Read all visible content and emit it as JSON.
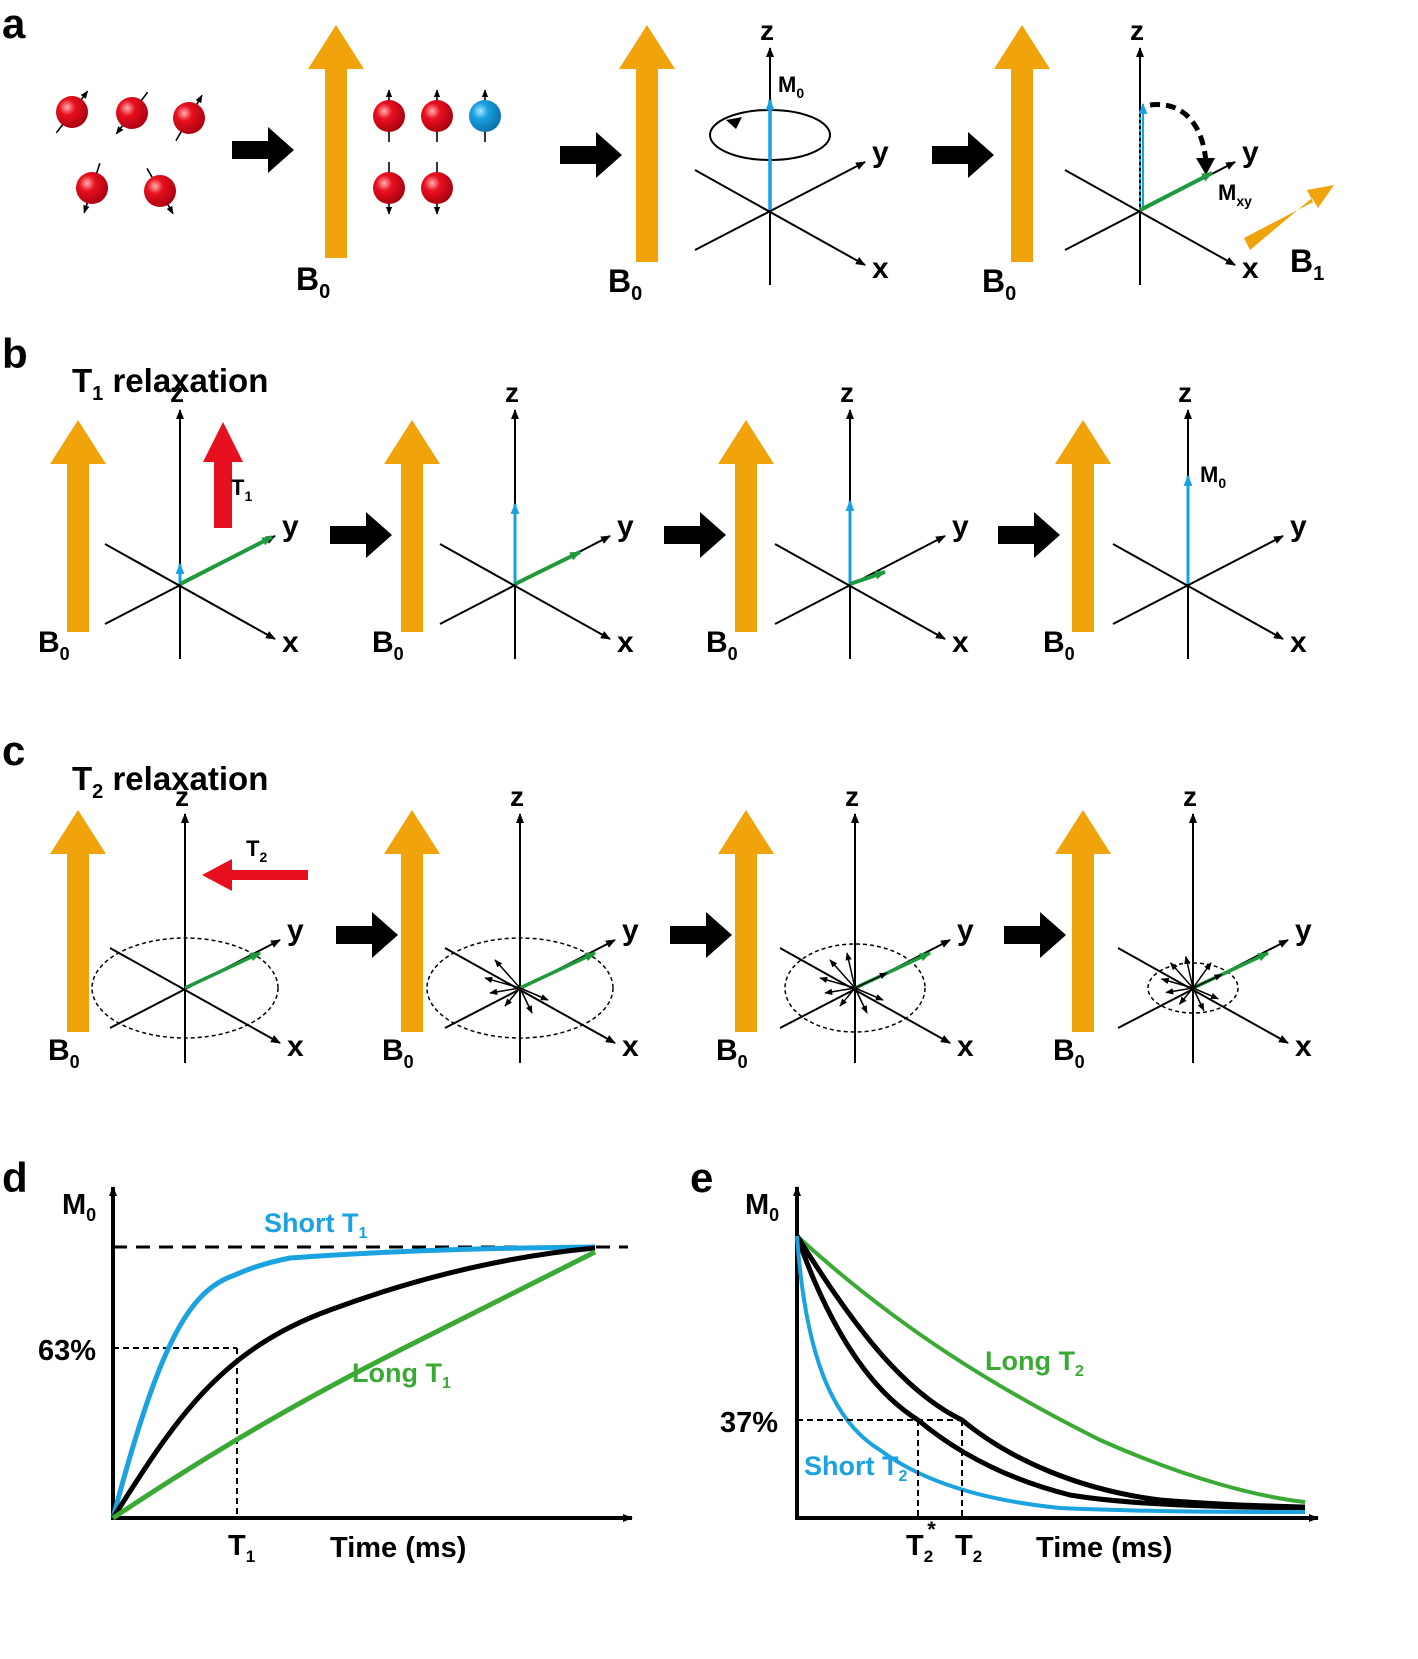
{
  "panel_labels": {
    "a": "a",
    "b": "b",
    "c": "c",
    "d": "d",
    "e": "e"
  },
  "titles": {
    "t1_main": "T",
    "t1_sub": "1",
    "t1_rest": " relaxation",
    "t2_main": "T",
    "t2_sub": "2",
    "t2_rest": " relaxation"
  },
  "axes": {
    "z": "z",
    "y": "y",
    "x": "x"
  },
  "field": {
    "b_main": "B",
    "b0_sub": "0",
    "b1_sub": "1"
  },
  "vectors": {
    "m_main": "M",
    "m0_sub": "0",
    "mxy_sub": "xy",
    "t_main": "T",
    "t1_sub": "1",
    "t2_sub": "2"
  },
  "colors": {
    "b_field": "#f0a30a",
    "spin_red": "#e8101e",
    "spin_blue": "#1aa0e0",
    "m_long": "#1aa0e0",
    "m_trans": "#1e9a3c",
    "relax_arrow": "#e8101e",
    "curve_short": "#1ba2e0",
    "curve_mid": "#000000",
    "curve_long": "#3aaa35"
  },
  "panel_d": {
    "y_label_main": "M",
    "y_label_sub": "0",
    "pct_label": "63%",
    "short_main": "Short T",
    "short_sub": "1",
    "long_main": "Long T",
    "long_sub": "1",
    "tick_main": "T",
    "tick_sub": "1",
    "x_label": "Time (ms)"
  },
  "panel_e": {
    "y_label_main": "M",
    "y_label_sub": "0",
    "pct_label": "37%",
    "short_main": "Short T",
    "short_sub": "2",
    "long_main": "Long T",
    "long_sub": "2",
    "tick1_main": "T",
    "tick1_sub": "2",
    "tick1_sup": "*",
    "tick2_main": "T",
    "tick2_sub": "2",
    "x_label": "Time (ms)"
  },
  "chart_data": [
    {
      "type": "line",
      "xlabel": "Time (ms)",
      "ylabel": "M0",
      "annotations": [
        "63%",
        "T1",
        "Short T1",
        "Long T1"
      ],
      "x": [
        0,
        0.5,
        1,
        1.5,
        2,
        2.5,
        3,
        3.5,
        4,
        4.5,
        5
      ],
      "series": [
        {
          "name": "Short T1",
          "values": [
            0,
            0.92,
            0.99,
            1,
            1,
            1,
            1,
            1,
            1,
            1,
            1
          ]
        },
        {
          "values": [
            0,
            0.39,
            0.63,
            0.78,
            0.86,
            0.92,
            0.95,
            0.97,
            0.98,
            0.99,
            1
          ]
        },
        {
          "name": "Long T1",
          "values": [
            0,
            0.22,
            0.4,
            0.53,
            0.64,
            0.73,
            0.8,
            0.86,
            0.91,
            0.96,
            1
          ]
        }
      ]
    },
    {
      "type": "line",
      "xlabel": "Time (ms)",
      "ylabel": "M0",
      "annotations": [
        "37%",
        "T2*",
        "T2",
        "Short T2",
        "Long T2"
      ],
      "x": [
        0,
        0.5,
        1,
        1.5,
        2,
        2.5,
        3,
        3.5,
        4,
        4.5,
        5
      ],
      "series": [
        {
          "name": "Short T2",
          "values": [
            1,
            0.37,
            0.16,
            0.08,
            0.05,
            0.03,
            0.02,
            0.01,
            0.01,
            0.01,
            0.01
          ]
        },
        {
          "values": [
            1,
            0.55,
            0.3,
            0.16,
            0.09,
            0.05,
            0.03,
            0.02,
            0.02,
            0.02,
            0.02
          ]
        },
        {
          "values": [
            1,
            0.66,
            0.42,
            0.28,
            0.18,
            0.12,
            0.08,
            0.06,
            0.05,
            0.04,
            0.03
          ]
        },
        {
          "name": "Long T2",
          "values": [
            1,
            0.8,
            0.64,
            0.5,
            0.39,
            0.3,
            0.22,
            0.16,
            0.11,
            0.07,
            0.05
          ]
        }
      ]
    }
  ]
}
